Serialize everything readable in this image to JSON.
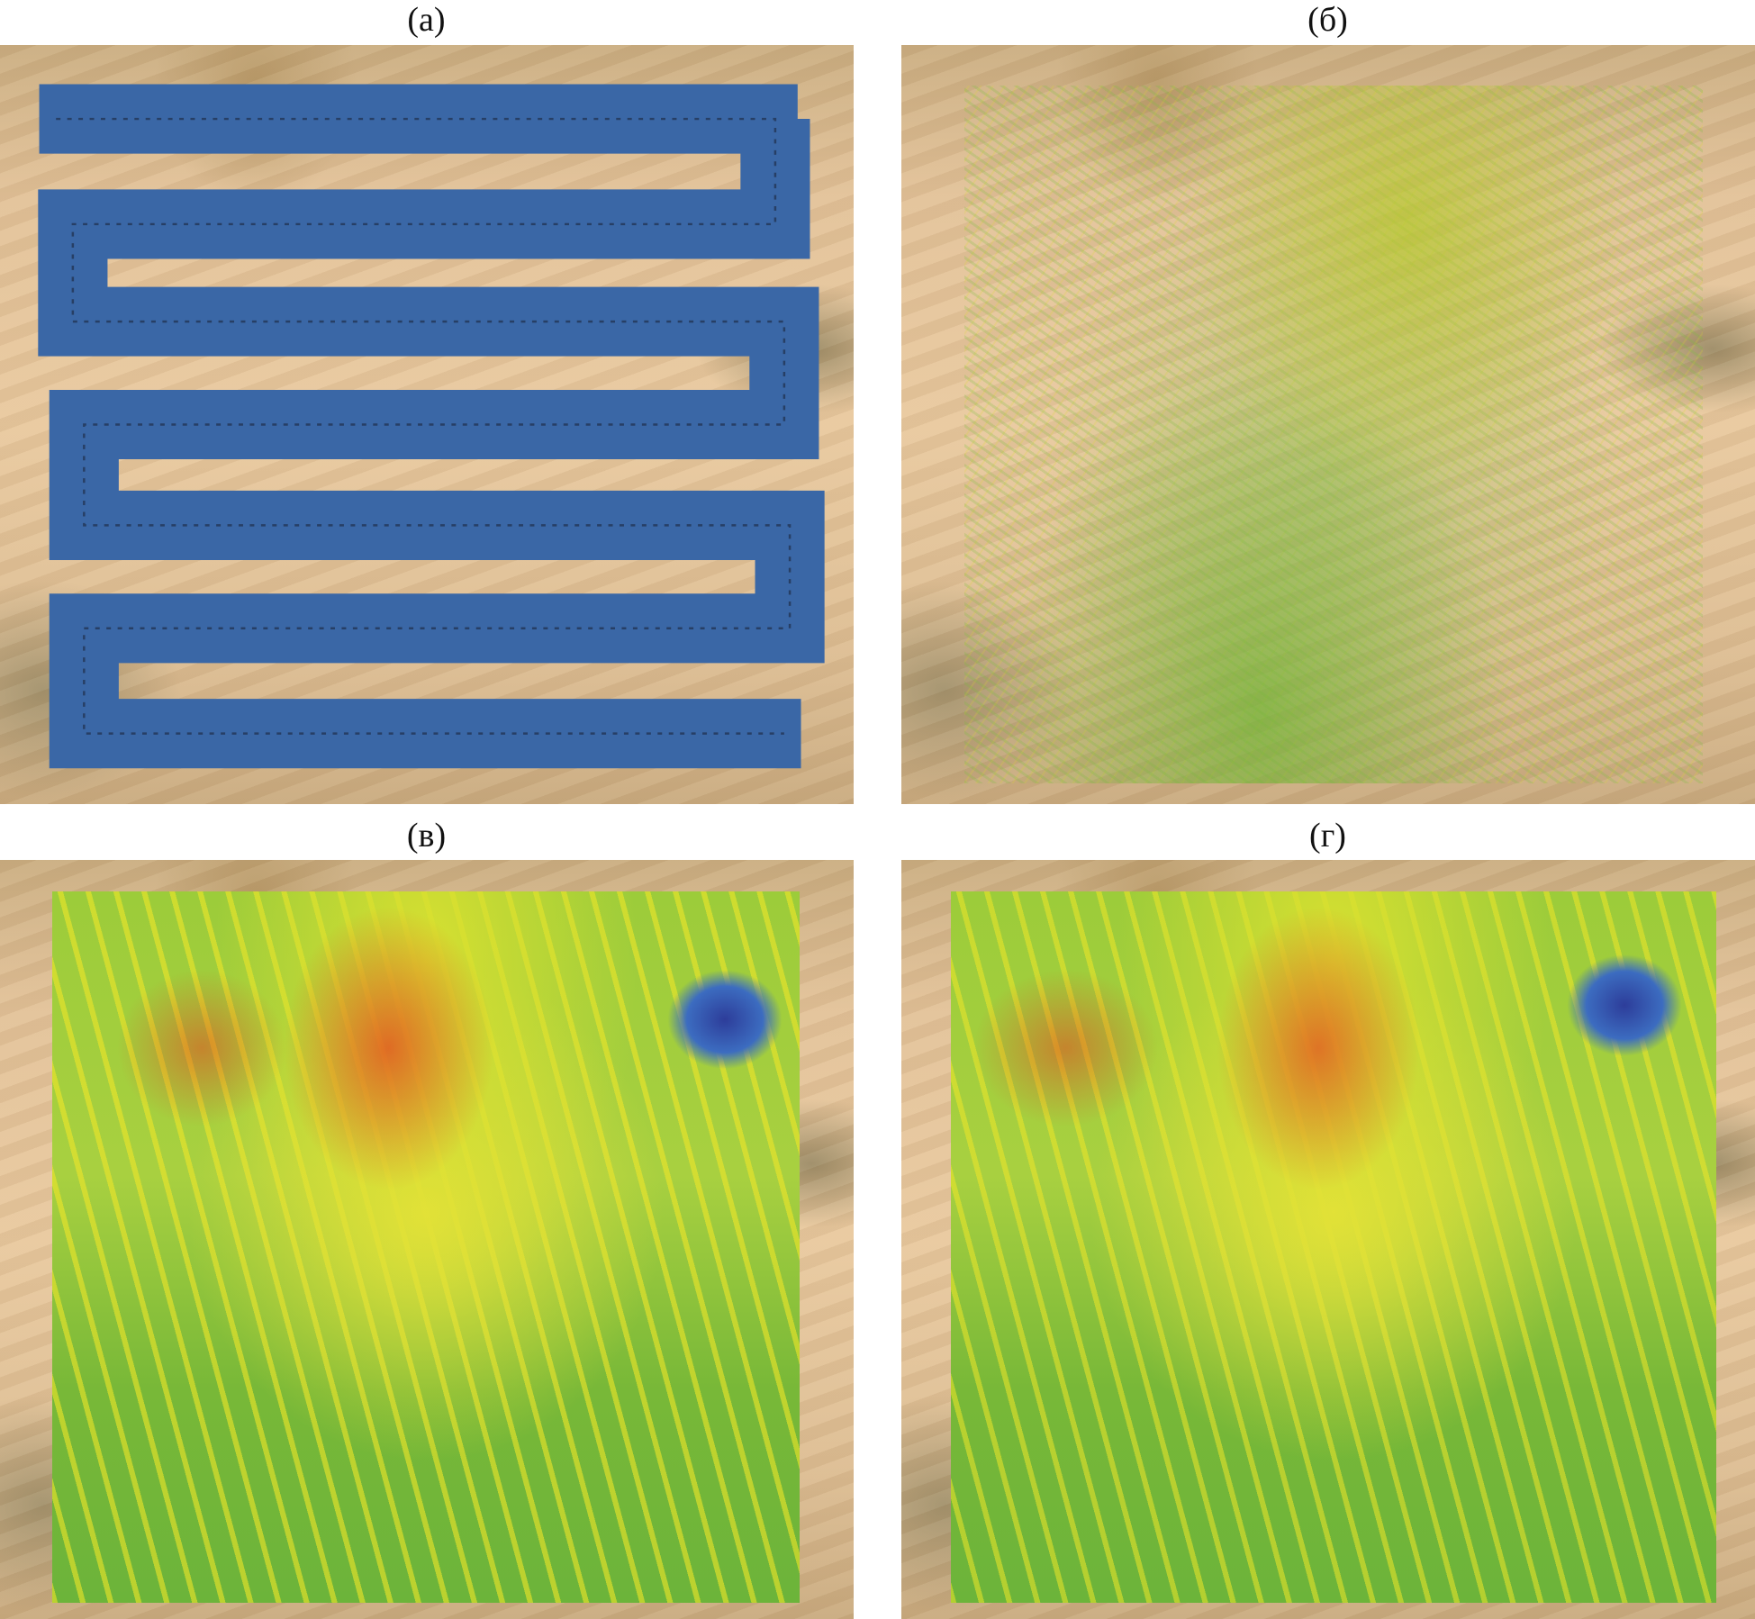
{
  "figure": {
    "panels": [
      {
        "label": "(а)",
        "content": "flight-path"
      },
      {
        "label": "(б)",
        "content": "point-cloud"
      },
      {
        "label": "(в)",
        "content": "elevation-map"
      },
      {
        "label": "(г)",
        "content": "elevation-map-smoothed"
      }
    ],
    "colors": {
      "flight_path": "#3a67a6",
      "sand": "#e2c29a",
      "high": "#e03c1e",
      "mid": "#e6e23a",
      "low": "#78b838",
      "water": "#2d3d9a"
    }
  }
}
